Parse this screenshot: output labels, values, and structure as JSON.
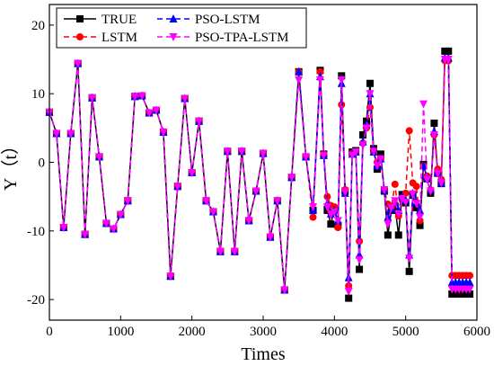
{
  "chart_data": {
    "type": "line",
    "xlabel": "Times",
    "ylabel": "Y（t）",
    "xlim": [
      0,
      6000
    ],
    "ylim": [
      -23,
      23
    ],
    "xticks": [
      0,
      1000,
      2000,
      3000,
      4000,
      5000,
      6000
    ],
    "yticks": [
      -20,
      -10,
      0,
      10,
      20
    ],
    "grid": false,
    "legend_position": "top-left",
    "x": [
      0,
      100,
      200,
      300,
      400,
      500,
      600,
      700,
      800,
      900,
      1000,
      1100,
      1200,
      1300,
      1400,
      1500,
      1600,
      1700,
      1800,
      1900,
      2000,
      2100,
      2200,
      2300,
      2400,
      2500,
      2600,
      2700,
      2800,
      2900,
      3000,
      3100,
      3200,
      3300,
      3400,
      3500,
      3600,
      3700,
      3800,
      3850,
      3900,
      3950,
      4000,
      4050,
      4100,
      4150,
      4200,
      4250,
      4300,
      4350,
      4400,
      4450,
      4500,
      4550,
      4600,
      4650,
      4700,
      4750,
      4800,
      4850,
      4900,
      4950,
      5000,
      5050,
      5100,
      5150,
      5200,
      5250,
      5300,
      5350,
      5400,
      5450,
      5500,
      5550,
      5600,
      5650,
      5700,
      5750,
      5800,
      5850,
      5900
    ],
    "series": [
      {
        "name": "TRUE",
        "color": "#000000",
        "dash": "solid",
        "marker": "square",
        "values": [
          7.3,
          4.2,
          -9.5,
          4.2,
          14.4,
          -10.5,
          9.4,
          0.8,
          -8.9,
          -9.7,
          -7.6,
          -5.6,
          9.6,
          9.7,
          7.2,
          7.6,
          4.4,
          -16.6,
          -3.5,
          9.3,
          -1.5,
          6.0,
          -5.6,
          -7.2,
          -13.0,
          1.6,
          -13.0,
          1.6,
          -8.5,
          -4.2,
          1.3,
          -10.9,
          -5.6,
          -18.6,
          -2.2,
          13.2,
          0.8,
          -7.0,
          13.4,
          1.2,
          -7.0,
          -9.0,
          -6.8,
          -9.2,
          12.6,
          -4.2,
          -19.8,
          1.5,
          1.7,
          -15.6,
          4.0,
          6.0,
          11.5,
          2.0,
          -1.0,
          1.2,
          -4.2,
          -10.6,
          -7.0,
          -6.4,
          -10.6,
          -4.7,
          -5.9,
          -15.9,
          -4.8,
          -6.6,
          -9.2,
          -0.3,
          -2.4,
          -4.5,
          5.7,
          -1.6,
          -3.1,
          16.2,
          16.2,
          -19.2,
          -19.2,
          -19.2,
          -19.2,
          -19.2,
          -19.2
        ],
        "_note": "values aligned to x"
      },
      {
        "name": "LSTM",
        "color": "#ff0000",
        "dash": "dashed",
        "marker": "circle",
        "values": [
          7.3,
          4.2,
          -9.5,
          4.2,
          14.4,
          -10.5,
          9.4,
          0.8,
          -8.9,
          -9.7,
          -7.6,
          -5.6,
          9.6,
          9.7,
          7.2,
          7.6,
          4.4,
          -16.6,
          -3.5,
          9.3,
          -1.5,
          6.0,
          -5.6,
          -7.2,
          -13.0,
          1.6,
          -13.0,
          1.6,
          -8.5,
          -4.2,
          1.3,
          -10.9,
          -5.6,
          -18.6,
          -2.2,
          13.2,
          0.8,
          -8.0,
          13.2,
          1.2,
          -5.0,
          -6.3,
          -6.5,
          -9.5,
          8.4,
          -4.0,
          -18.0,
          1.3,
          1.5,
          -11.5,
          2.8,
          5.0,
          8.0,
          1.5,
          0.0,
          0.5,
          -4.0,
          -6.1,
          -6.5,
          -3.2,
          -7.8,
          -5.5,
          -4.5,
          4.6,
          -3.0,
          -3.5,
          -8.5,
          -0.5,
          -2.0,
          -4.0,
          4.0,
          -1.0,
          -2.5,
          14.8,
          14.8,
          -16.5,
          -16.5,
          -16.5,
          -16.5,
          -16.5,
          -16.5
        ]
      },
      {
        "name": "PSO-LSTM",
        "color": "#0000ff",
        "dash": "dashed",
        "marker": "triangle-up",
        "values": [
          7.3,
          4.2,
          -9.5,
          4.2,
          14.4,
          -10.5,
          9.4,
          0.8,
          -8.9,
          -9.7,
          -7.6,
          -5.6,
          9.6,
          9.7,
          7.2,
          7.6,
          4.4,
          -16.6,
          -3.5,
          9.3,
          -1.5,
          6.0,
          -5.6,
          -7.2,
          -13.0,
          1.6,
          -13.0,
          1.6,
          -8.5,
          -4.2,
          1.3,
          -10.9,
          -5.6,
          -18.6,
          -2.2,
          13.2,
          0.8,
          -7.0,
          12.5,
          1.0,
          -6.0,
          -7.5,
          -7.0,
          -8.5,
          11.5,
          -4.5,
          -16.8,
          1.2,
          1.5,
          -13.5,
          3.0,
          5.5,
          10.0,
          1.5,
          -0.5,
          0.5,
          -4.0,
          -8.0,
          -6.8,
          -6.0,
          -7.0,
          -5.0,
          -5.5,
          -13.5,
          -4.5,
          -5.8,
          -7.0,
          -0.5,
          -2.2,
          -4.0,
          4.5,
          -1.5,
          -3.0,
          15.2,
          15.2,
          -17.5,
          -17.5,
          -17.5,
          -17.5,
          -17.5,
          -17.5
        ]
      },
      {
        "name": "PSO-TPA-LSTM",
        "color": "#ff00ff",
        "dash": "dashed",
        "marker": "triangle-down",
        "values": [
          7.3,
          4.2,
          -9.5,
          4.2,
          14.4,
          -10.5,
          9.4,
          0.8,
          -8.9,
          -9.7,
          -7.6,
          -5.6,
          9.6,
          9.7,
          7.2,
          7.6,
          4.4,
          -16.6,
          -3.5,
          9.3,
          -1.5,
          6.0,
          -5.6,
          -7.2,
          -13.0,
          1.6,
          -13.0,
          1.6,
          -8.5,
          -4.2,
          1.3,
          -10.9,
          -5.6,
          -18.6,
          -2.2,
          12.0,
          0.8,
          -6.5,
          12.0,
          1.0,
          -6.5,
          -7.6,
          -7.2,
          -8.5,
          12.0,
          -4.3,
          -18.8,
          1.0,
          1.5,
          -14.2,
          2.5,
          5.0,
          10.0,
          1.6,
          -0.5,
          0.5,
          -4.0,
          -9.0,
          -6.6,
          -5.6,
          -7.5,
          -5.3,
          -5.8,
          -14.0,
          -4.6,
          -6.0,
          -8.0,
          8.5,
          -2.5,
          -4.2,
          4.0,
          -1.6,
          -3.0,
          15.0,
          15.0,
          -18.5,
          -18.5,
          -18.5,
          -18.5,
          -18.5,
          -18.5
        ]
      }
    ]
  }
}
